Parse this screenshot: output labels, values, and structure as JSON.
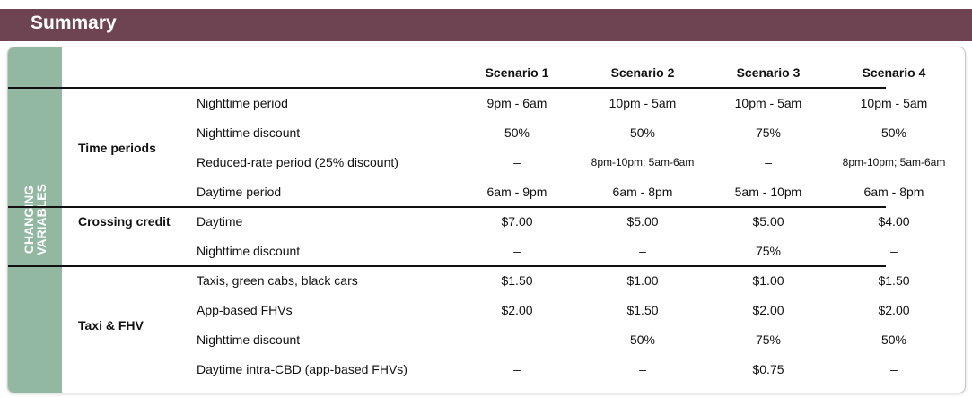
{
  "header": {
    "title": "Summary"
  },
  "side_label": [
    "CHANGING",
    "VARIABLES"
  ],
  "table": {
    "columns": [
      "Scenario 1",
      "Scenario 2",
      "Scenario 3",
      "Scenario 4"
    ],
    "groups": [
      {
        "name": "Time periods",
        "rows": [
          {
            "label": "Nighttime period",
            "values": [
              "9pm - 6am",
              "10pm - 5am",
              "10pm - 5am",
              "10pm - 5am"
            ]
          },
          {
            "label": "Nighttime discount",
            "values": [
              "50%",
              "50%",
              "75%",
              "50%"
            ]
          },
          {
            "label": "Reduced-rate period (25% discount)",
            "values": [
              "–",
              "8pm-10pm; 5am-6am",
              "–",
              "8pm-10pm; 5am-6am"
            ]
          },
          {
            "label": "Daytime period",
            "values": [
              "6am - 9pm",
              "6am - 8pm",
              "5am - 10pm",
              "6am - 8pm"
            ]
          }
        ]
      },
      {
        "name": "Crossing credit",
        "rows": [
          {
            "label": "Daytime",
            "values": [
              "$7.00",
              "$5.00",
              "$5.00",
              "$4.00"
            ]
          },
          {
            "label": "Nighttime discount",
            "values": [
              "–",
              "–",
              "75%",
              "–"
            ]
          }
        ]
      },
      {
        "name": "Taxi & FHV",
        "rows": [
          {
            "label": "Taxis, green cabs, black cars",
            "values": [
              "$1.50",
              "$1.00",
              "$1.00",
              "$1.50"
            ]
          },
          {
            "label": "App-based FHVs",
            "values": [
              "$2.00",
              "$1.50",
              "$2.00",
              "$2.00"
            ]
          },
          {
            "label": "Nighttime discount",
            "values": [
              "–",
              "50%",
              "75%",
              "50%"
            ]
          },
          {
            "label": "Daytime intra-CBD (app-based FHVs)",
            "values": [
              "–",
              "–",
              "$0.75",
              "–"
            ]
          }
        ]
      }
    ]
  }
}
